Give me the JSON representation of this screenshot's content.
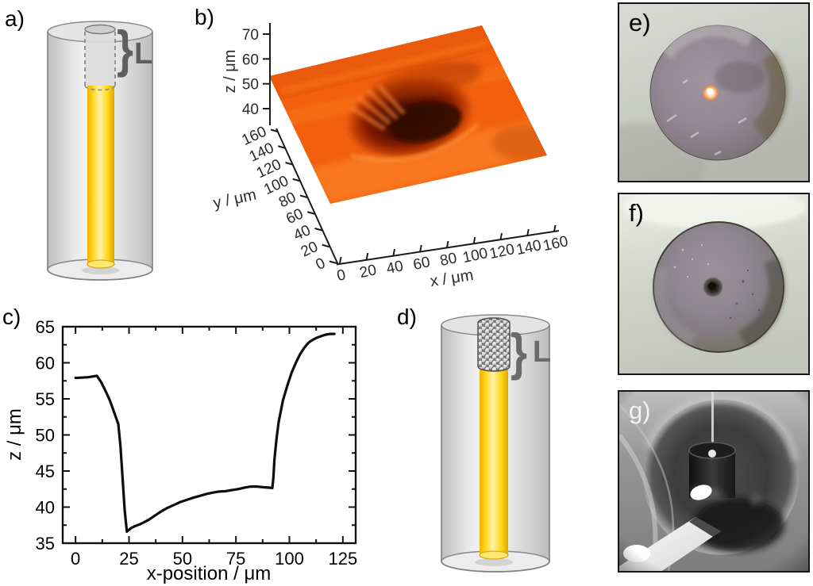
{
  "panel_labels": {
    "a": "a)",
    "b": "b)",
    "c": "c)",
    "d": "d)",
    "e": "e)",
    "f": "f)",
    "g": "g)"
  },
  "schematics": {
    "a": {
      "brace": "}",
      "length_label": "L"
    },
    "d": {
      "brace": "}",
      "length_label": "L"
    }
  },
  "colors": {
    "fiber_glass": "#e9e9e9",
    "fiber_outline": "#808080",
    "core_yellow": "#ffd81e",
    "annotation_grey": "#5f5f5f",
    "surface_orange": "#f2600e",
    "crater_dark": "#330900",
    "curve_black": "#0d0d0d"
  },
  "chart_data": [
    {
      "id": "b-surface-profilometry",
      "type": "heatmap",
      "title": "",
      "xlabel": "x / μm",
      "ylabel": "y / μm",
      "zlabel": "z / μm",
      "xticks": [
        0,
        20,
        40,
        60,
        80,
        100,
        120,
        140,
        160
      ],
      "yticks": [
        0,
        20,
        40,
        60,
        80,
        100,
        120,
        140,
        160
      ],
      "zticks": [
        40,
        50,
        60,
        70
      ],
      "xlim": [
        0,
        160
      ],
      "ylim": [
        0,
        160
      ],
      "zlim": [
        37,
        74
      ],
      "surface_plateau_z_range": [
        53,
        65
      ],
      "crater": {
        "center_x_um": 70,
        "center_y_um": 85,
        "top_diameter_um": 75,
        "floor_z_um": 37
      }
    },
    {
      "id": "c-line-profile",
      "type": "line",
      "title": "",
      "xlabel": "x-position / μm",
      "ylabel": "z / μm",
      "xticks": [
        0,
        25,
        50,
        75,
        100,
        125
      ],
      "yticks": [
        35,
        40,
        45,
        50,
        55,
        60,
        65
      ],
      "xlim": [
        -6,
        131
      ],
      "ylim": [
        35,
        65
      ],
      "grid": false,
      "x": [
        0,
        3,
        6,
        9,
        10,
        12,
        14,
        16,
        18,
        20,
        21,
        22,
        23,
        24,
        26,
        28,
        30,
        32,
        34,
        36,
        38,
        40,
        43,
        46,
        49,
        52,
        55,
        58,
        61,
        64,
        67,
        70,
        73,
        76,
        79,
        82,
        85,
        88,
        90,
        92,
        92.5,
        93,
        94,
        95,
        97,
        99,
        101,
        103,
        105,
        107,
        109,
        111,
        113,
        115,
        117,
        119,
        121
      ],
      "y": [
        57.9,
        57.95,
        58.0,
        58.15,
        58.2,
        57.3,
        56.1,
        54.8,
        53.2,
        51.5,
        48.5,
        44.0,
        39.5,
        36.6,
        37.1,
        37.4,
        37.6,
        37.9,
        38.2,
        38.6,
        39.0,
        39.4,
        39.9,
        40.3,
        40.7,
        41.0,
        41.3,
        41.55,
        41.8,
        42.0,
        42.15,
        42.2,
        42.35,
        42.5,
        42.7,
        42.85,
        42.85,
        42.75,
        42.7,
        42.65,
        44.0,
        46.5,
        49.5,
        51.8,
        54.8,
        56.8,
        58.6,
        60.0,
        61.2,
        62.1,
        62.8,
        63.2,
        63.5,
        63.7,
        63.9,
        64.0,
        64.0
      ]
    }
  ]
}
